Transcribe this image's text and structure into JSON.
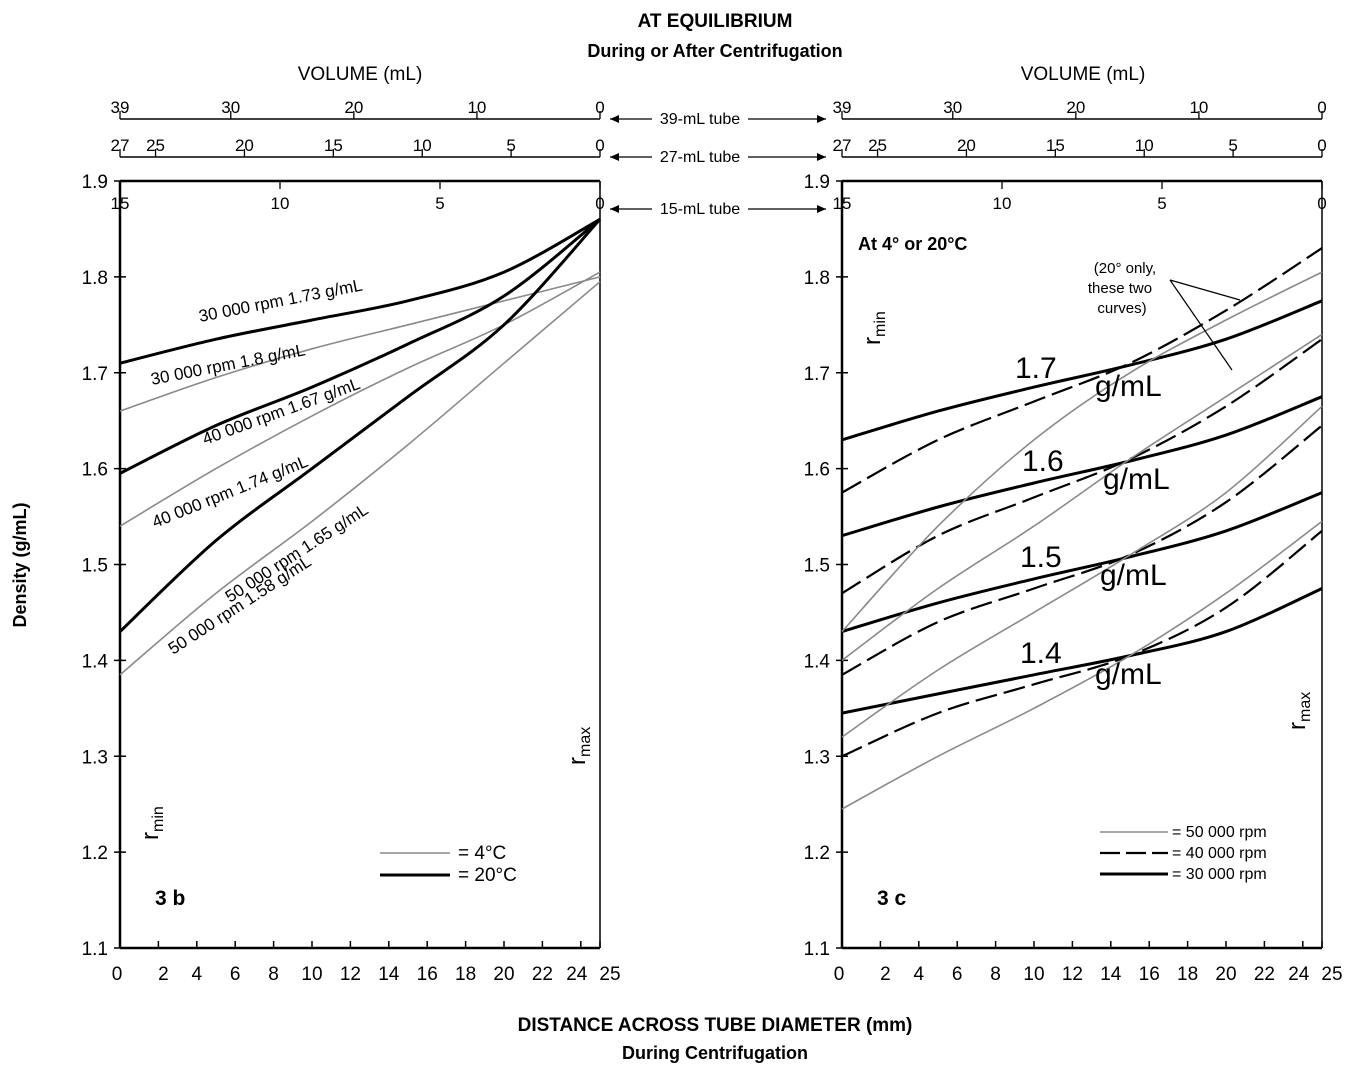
{
  "figure": {
    "header_line1": "AT EQUILIBRIUM",
    "header_line2": "During or After Centrifugation",
    "footer_line1": "DISTANCE ACROSS TUBE DIAMETER (mm)",
    "footer_line2": "During Centrifugation",
    "ylabel": "Density (g/mL)",
    "volume_label": "VOLUME (mL)",
    "tube_39": "39-mL tube",
    "tube_27": "27-mL tube",
    "tube_15": "15-mL tube",
    "rmin": "r",
    "rmin_sub": "min",
    "rmax": "r",
    "rmax_sub": "max"
  },
  "colors": {
    "ink": "#000000",
    "light": "#8a8a8a"
  },
  "chart_data": [
    {
      "id": "3b",
      "type": "line",
      "panel_label": "3 b",
      "xlim": [
        0,
        25
      ],
      "ylim": [
        1.1,
        1.9
      ],
      "x_ticks": [
        0,
        2,
        4,
        6,
        8,
        10,
        12,
        14,
        16,
        18,
        20,
        22,
        24,
        25
      ],
      "x_tick_labels": [
        "0",
        "2",
        "4",
        "6",
        "8",
        "10",
        "12",
        "14",
        "16",
        "18",
        "20",
        "22",
        "24",
        "25"
      ],
      "y_ticks": [
        1.1,
        1.2,
        1.3,
        1.4,
        1.5,
        1.6,
        1.7,
        1.8,
        1.9
      ],
      "y_tick_labels": [
        "1.1",
        "1.2",
        "1.3",
        "1.4",
        "1.5",
        "1.6",
        "1.7",
        "1.8",
        "1.9"
      ],
      "volume_axes": [
        {
          "tube": "39-mL",
          "ticks": [
            39,
            30,
            20,
            10,
            0
          ],
          "labels": [
            "39",
            "30",
            "20",
            "10",
            "0"
          ]
        },
        {
          "tube": "27-mL",
          "ticks": [
            27,
            25,
            20,
            15,
            10,
            5,
            0
          ],
          "labels": [
            "27",
            "25",
            "20",
            "15",
            "10",
            "5",
            "0"
          ]
        },
        {
          "tube": "15-mL",
          "ticks": [
            15,
            10,
            5,
            0
          ],
          "labels": [
            "15",
            "10",
            "5",
            "0"
          ]
        }
      ],
      "legend": [
        {
          "label": "=   4°C",
          "style": "light"
        },
        {
          "label": "=  20°C",
          "style": "solid"
        }
      ],
      "series": [
        {
          "label": "30 000 rpm 1.73 g/mL",
          "style": "solid",
          "x": [
            0,
            5,
            10,
            15,
            20,
            25
          ],
          "y": [
            1.71,
            1.735,
            1.755,
            1.775,
            1.805,
            1.86
          ]
        },
        {
          "label": "30 000 rpm 1.8 g/mL",
          "style": "light",
          "x": [
            0,
            5,
            10,
            15,
            20,
            25
          ],
          "y": [
            1.66,
            1.695,
            1.725,
            1.75,
            1.775,
            1.8
          ]
        },
        {
          "label": "40 000 rpm 1.67 g/mL",
          "style": "solid",
          "x": [
            0,
            5,
            10,
            15,
            20,
            25
          ],
          "y": [
            1.595,
            1.645,
            1.685,
            1.73,
            1.78,
            1.86
          ]
        },
        {
          "label": "40 000 rpm 1.74 g/mL",
          "style": "light",
          "x": [
            0,
            5,
            10,
            15,
            20,
            25
          ],
          "y": [
            1.54,
            1.6,
            1.655,
            1.705,
            1.75,
            1.805
          ]
        },
        {
          "label": "50 000 rpm 1.65 g/mL",
          "style": "solid",
          "x": [
            0,
            5,
            10,
            15,
            20,
            25
          ],
          "y": [
            1.43,
            1.525,
            1.6,
            1.675,
            1.75,
            1.86
          ]
        },
        {
          "label": "50 000 rpm 1.58 g/mL",
          "style": "light",
          "x": [
            0,
            5,
            10,
            15,
            20,
            25
          ],
          "y": [
            1.385,
            1.47,
            1.545,
            1.625,
            1.71,
            1.795
          ]
        }
      ]
    },
    {
      "id": "3c",
      "type": "line",
      "panel_label": "3 c",
      "condition_label": "At 4° or 20°C",
      "note": "(20° only, these two curves)",
      "xlim": [
        0,
        25
      ],
      "ylim": [
        1.1,
        1.9
      ],
      "x_ticks": [
        0,
        2,
        4,
        6,
        8,
        10,
        12,
        14,
        16,
        18,
        20,
        22,
        24,
        25
      ],
      "x_tick_labels": [
        "0",
        "2",
        "4",
        "6",
        "8",
        "10",
        "12",
        "14",
        "16",
        "18",
        "20",
        "22",
        "24",
        "25"
      ],
      "y_ticks": [
        1.1,
        1.2,
        1.3,
        1.4,
        1.5,
        1.6,
        1.7,
        1.8,
        1.9
      ],
      "y_tick_labels": [
        "1.1",
        "1.2",
        "1.3",
        "1.4",
        "1.5",
        "1.6",
        "1.7",
        "1.8",
        "1.9"
      ],
      "volume_axes": [
        {
          "tube": "39-mL",
          "ticks": [
            39,
            30,
            20,
            10,
            0
          ],
          "labels": [
            "39",
            "30",
            "20",
            "10",
            "0"
          ]
        },
        {
          "tube": "27-mL",
          "ticks": [
            27,
            25,
            20,
            15,
            10,
            5,
            0
          ],
          "labels": [
            "27",
            "25",
            "20",
            "15",
            "10",
            "5",
            "0"
          ]
        },
        {
          "tube": "15-mL",
          "ticks": [
            15,
            10,
            5,
            0
          ],
          "labels": [
            "15",
            "10",
            "5",
            "0"
          ]
        }
      ],
      "density_labels": [
        {
          "value": "1.7",
          "unit": "g/mL"
        },
        {
          "value": "1.6",
          "unit": "g/mL"
        },
        {
          "value": "1.5",
          "unit": "g/mL"
        },
        {
          "value": "1.4",
          "unit": "g/mL"
        }
      ],
      "legend": [
        {
          "label": "= 50 000 rpm",
          "style": "light"
        },
        {
          "label": "= 40 000 rpm",
          "style": "dashed"
        },
        {
          "label": "= 30 000 rpm",
          "style": "solid"
        }
      ],
      "series": [
        {
          "density": 1.7,
          "rpm": "30 000",
          "style": "solid",
          "x": [
            0,
            5,
            10,
            15,
            20,
            25
          ],
          "y": [
            1.63,
            1.66,
            1.685,
            1.708,
            1.735,
            1.775
          ]
        },
        {
          "density": 1.7,
          "rpm": "40 000",
          "style": "dashed",
          "x": [
            0,
            5,
            10,
            15,
            20,
            25
          ],
          "y": [
            1.575,
            1.63,
            1.67,
            1.71,
            1.765,
            1.83
          ]
        },
        {
          "density": 1.6,
          "rpm": "30 000",
          "style": "solid",
          "x": [
            0,
            5,
            10,
            15,
            20,
            25
          ],
          "y": [
            1.53,
            1.56,
            1.585,
            1.608,
            1.635,
            1.675
          ]
        },
        {
          "density": 1.6,
          "rpm": "40 000",
          "style": "dashed",
          "x": [
            0,
            5,
            10,
            15,
            20,
            25
          ],
          "y": [
            1.47,
            1.53,
            1.57,
            1.61,
            1.665,
            1.735
          ]
        },
        {
          "density": 1.5,
          "rpm": "30 000",
          "style": "solid",
          "x": [
            0,
            5,
            10,
            15,
            20,
            25
          ],
          "y": [
            1.43,
            1.46,
            1.485,
            1.508,
            1.535,
            1.575
          ]
        },
        {
          "density": 1.5,
          "rpm": "40 000",
          "style": "dashed",
          "x": [
            0,
            5,
            10,
            15,
            20,
            25
          ],
          "y": [
            1.385,
            1.44,
            1.475,
            1.51,
            1.565,
            1.645
          ]
        },
        {
          "density": 1.4,
          "rpm": "30 000",
          "style": "solid",
          "x": [
            0,
            5,
            10,
            15,
            20,
            25
          ],
          "y": [
            1.345,
            1.365,
            1.385,
            1.405,
            1.43,
            1.475
          ]
        },
        {
          "density": 1.4,
          "rpm": "40 000",
          "style": "dashed",
          "x": [
            0,
            5,
            10,
            15,
            20,
            25
          ],
          "y": [
            1.3,
            1.345,
            1.375,
            1.405,
            1.455,
            1.535
          ]
        },
        {
          "density": 1.7,
          "rpm": "50 000",
          "style": "light",
          "x": [
            0,
            5,
            10,
            15,
            20,
            25
          ],
          "y": [
            1.43,
            1.54,
            1.63,
            1.7,
            1.755,
            1.805
          ]
        },
        {
          "density": 1.6,
          "rpm": "50 000",
          "style": "light",
          "x": [
            0,
            5,
            10,
            15,
            20,
            25
          ],
          "y": [
            1.4,
            1.475,
            1.54,
            1.61,
            1.675,
            1.74
          ]
        },
        {
          "density": 1.5,
          "rpm": "50 000",
          "style": "light",
          "x": [
            0,
            5,
            10,
            15,
            20,
            25
          ],
          "y": [
            1.32,
            1.39,
            1.45,
            1.51,
            1.575,
            1.665
          ]
        },
        {
          "density": 1.4,
          "rpm": "50 000",
          "style": "light",
          "x": [
            0,
            5,
            10,
            15,
            20,
            25
          ],
          "y": [
            1.245,
            1.3,
            1.35,
            1.405,
            1.47,
            1.545
          ]
        }
      ]
    }
  ]
}
